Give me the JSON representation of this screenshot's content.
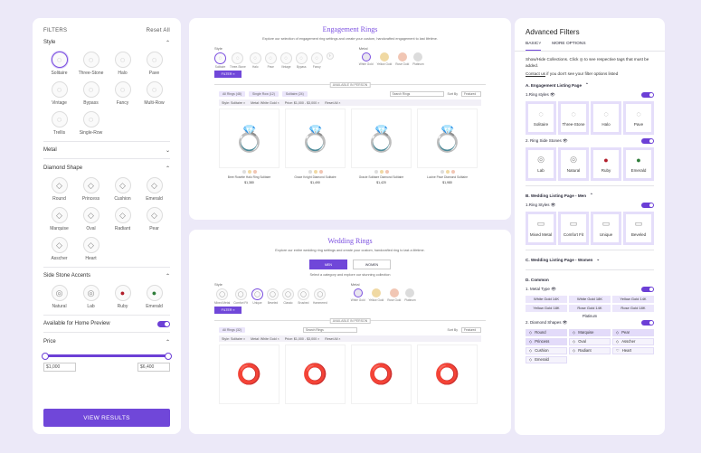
{
  "filters": {
    "title": "FILTERS",
    "reset": "Reset All",
    "style": {
      "title": "Style",
      "items": [
        "Solitaire",
        "Three-Stone",
        "Halo",
        "Pave",
        "Vintage",
        "Bypass",
        "Fancy",
        "Multi-Row",
        "Trellis",
        "Single-Row"
      ]
    },
    "metal": {
      "title": "Metal"
    },
    "diamond": {
      "title": "Diamond Shape",
      "items": [
        "Round",
        "Princess",
        "Cushion",
        "Emerald",
        "Marquise",
        "Oval",
        "Radiant",
        "Pear",
        "Asscher",
        "Heart"
      ]
    },
    "side": {
      "title": "Side Stone Accents",
      "items": [
        "Natural",
        "Lab",
        "Ruby",
        "Emerald"
      ]
    },
    "preview": "Available for Home Preview",
    "price": {
      "title": "Price",
      "min": "$1,000",
      "max": "$6,400"
    },
    "view": "VIEW RESULTS"
  },
  "eng": {
    "title": "Engagement Rings",
    "sub": "Explore our selection of engagement ring settings and create your custom, handcrafted engagement to last lifetime.",
    "style_label": "Style",
    "metal_label": "Metal",
    "styles": [
      "Solitaire",
      "Three-Stone",
      "Halo",
      "Pave",
      "Vintage",
      "Bypass",
      "Fancy"
    ],
    "metals": [
      "White Gold",
      "Yellow Gold",
      "Rose Gold",
      "Platinum"
    ],
    "filter_btn": "FILTER",
    "shadow": "AVAILABLE IN PERSON",
    "chips": [
      "All Rings (48)",
      "Single Row (12)",
      "Solitaire (24)"
    ],
    "search": "Search Rings",
    "sortby": "Sort By",
    "sort": "Featured",
    "active": [
      "Style: Solitaire ×",
      "Metal: White Gold ×",
      "Price: $1,000 - $3,000 ×",
      "Reset All ×"
    ],
    "products": [
      {
        "name": "Bree Rosette Halo Ring Solitaire",
        "price": "$1,380"
      },
      {
        "name": "Grace Knight Diamond Solitaire",
        "price": "$1,490"
      },
      {
        "name": "Gracie Solitaire Diamond Solitaire",
        "price": "$1,420"
      },
      {
        "name": "Lucine Pave Diamond Solitaire",
        "price": "$1,980"
      }
    ]
  },
  "wed": {
    "title": "Wedding Rings",
    "sub": "Explore our entire wedding ring settings and create your custom, handcrafted ring to last a lifetime.",
    "tabs": [
      "MEN",
      "WOMEN"
    ],
    "tagline": "Select a category and explore our stunning collection",
    "style_label": "Style",
    "metal_label": "Metal",
    "styles": [
      "Mixed Metal",
      "Comfort Fit",
      "Unique",
      "Beveled",
      "Classic",
      "Brushed",
      "Hammered"
    ],
    "metals": [
      "White Gold",
      "Yellow Gold",
      "Rose Gold",
      "Platinum"
    ],
    "filter_btn": "FILTER",
    "shadow": "AVAILABLE IN PERSON",
    "chips": [
      "All Rings (32)"
    ],
    "search": "Search Rings",
    "sortby": "Sort By",
    "sort": "Featured",
    "active": [
      "Style: Solitaire ×",
      "Metal: White Gold ×",
      "Price: $1,000 - $3,000 ×",
      "Reset All ×"
    ]
  },
  "adv": {
    "title": "Advanced Filters",
    "tabs": [
      "BASIC",
      "MORE OPTIONS"
    ],
    "desc": "Show/Hide Collections. Click ◎ to see respective tags that must be added.",
    "contact": "Contact us",
    "contact_rest": " if you don't see your filter options listed",
    "secA": "A. Engagement Listing Page",
    "row1": "1.Ring styles",
    "cards1": [
      "Solitaire",
      "Three-Stone",
      "Halo",
      "Pave"
    ],
    "row2": "2. Ring Side Stones",
    "cards2": [
      "Lab",
      "Natural",
      "Ruby",
      "Emerald"
    ],
    "secB": "B. Wedding Listing Page - Men",
    "row3": "1.Ring Styles",
    "cards3": [
      "Mixed Metal",
      "Comfort Fit",
      "Unique",
      "Beveled"
    ],
    "secC": "C. Wedding Listing Page - Women",
    "secD": "D. Common",
    "row4": "1. Metal Type",
    "metals": [
      "White Gold 14K",
      "White Gold 18K",
      "Yellow Gold 14K",
      "Yellow Gold 18K",
      "Rose Gold 14K",
      "Rose Gold 18K"
    ],
    "platinum": "Platinum",
    "row5": "2. Diamond Shapes",
    "shapes": [
      "Round",
      "Marquise",
      "Pear",
      "Princess",
      "Oval",
      "Asscher",
      "Cushion",
      "Radiant",
      "Heart",
      "Emerald"
    ]
  }
}
